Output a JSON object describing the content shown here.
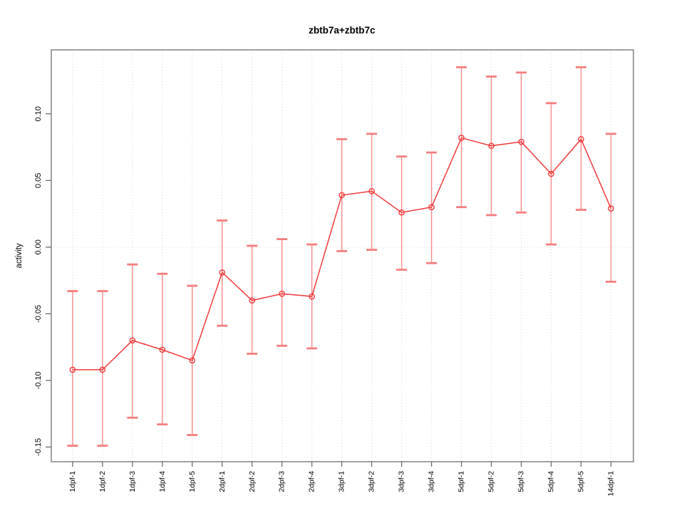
{
  "chart_data": {
    "type": "line",
    "title": "zbtb7a+zbtb7c",
    "xlabel": "",
    "ylabel": "activity",
    "categories": [
      "1dpf-1",
      "1dpf-2",
      "1dpf-3",
      "1dpf-4",
      "1dpf-5",
      "2dpf-1",
      "2dpf-2",
      "2dpf-3",
      "2dpf-4",
      "3dpf-1",
      "3dpf-2",
      "3dpf-3",
      "3dpf-4",
      "5dpf-1",
      "5dpf-2",
      "5dpf-3",
      "5dpf-4",
      "5dpf-5",
      "14dpf-1"
    ],
    "values": [
      -0.092,
      -0.092,
      -0.07,
      -0.077,
      -0.085,
      -0.019,
      -0.04,
      -0.035,
      -0.037,
      0.039,
      0.042,
      0.026,
      0.03,
      0.082,
      0.076,
      0.079,
      0.055,
      0.081,
      0.029
    ],
    "error_low": [
      -0.149,
      -0.149,
      -0.128,
      -0.133,
      -0.141,
      -0.059,
      -0.08,
      -0.074,
      -0.076,
      -0.003,
      -0.002,
      -0.017,
      -0.012,
      0.03,
      0.024,
      0.026,
      0.002,
      0.028,
      -0.026
    ],
    "error_high": [
      -0.033,
      -0.033,
      -0.013,
      -0.02,
      -0.029,
      0.02,
      0.001,
      0.006,
      0.002,
      0.081,
      0.085,
      0.068,
      0.071,
      0.135,
      0.128,
      0.131,
      0.108,
      0.135,
      0.085
    ],
    "ylim": [
      -0.161,
      0.148
    ],
    "yticks": [
      0.1,
      0.05,
      0.0,
      -0.05,
      -0.1,
      -0.15
    ],
    "ytick_labels": [
      "0.10",
      "0.05",
      "0.00",
      "-0.05",
      "-0.10",
      "-0.15"
    ],
    "x_tick_label_rotation_deg": 90,
    "gridlines": "light dotted vertical line at each category; light dotted horizontal line at y=0",
    "legend": null,
    "marker": "open-circle",
    "colors": {
      "line": "#ef3b3b",
      "marker": "#ef3b3b",
      "error_bar": "#f79090",
      "error_cap": "#f47e7e",
      "grid": "#d6d6d6",
      "axis": "#6e6e6e",
      "text": "#000000",
      "background": "#ffffff"
    }
  }
}
